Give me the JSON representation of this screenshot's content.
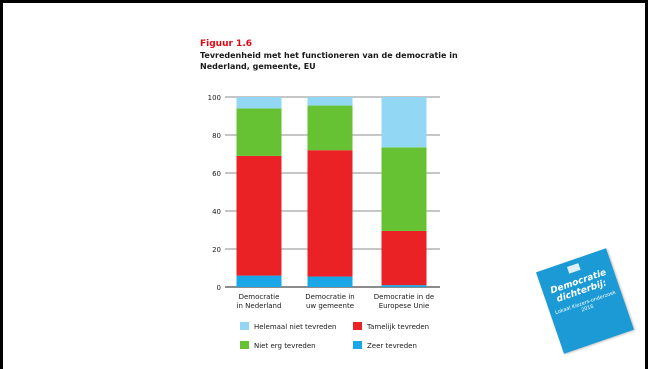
{
  "figure": {
    "label": "Figuur 1.6",
    "title": "Tevredenheid met het functioneren van de democratie in Nederland, gemeente, EU"
  },
  "booklet": {
    "title": "Democratie dichterbij:",
    "subtitle": "Lokaal Kiezers-onderzoek 2016"
  },
  "chart_data": {
    "type": "bar",
    "stacked": true,
    "categories": [
      [
        "Democratie",
        "in Nederland"
      ],
      [
        "Democratie in",
        "uw gemeente"
      ],
      [
        "Democratie in de",
        "Europese Unie"
      ]
    ],
    "series": [
      {
        "name": "Zeer tevreden",
        "color": "#1aa7e8",
        "values": [
          6,
          5.5,
          1
        ]
      },
      {
        "name": "Tamelijk tevreden",
        "color": "#ea2226",
        "values": [
          63,
          66.5,
          28.5
        ]
      },
      {
        "name": "Niet erg tevreden",
        "color": "#66c232",
        "values": [
          25,
          23.5,
          44
        ]
      },
      {
        "name": "Helemaal niet tevreden",
        "color": "#92d7f4",
        "values": [
          6,
          4.5,
          26.5
        ]
      }
    ],
    "legend_order": [
      "Helemaal niet tevreden",
      "Tamelijk tevreden",
      "Niet erg tevreden",
      "Zeer tevreden"
    ],
    "yticks": [
      0,
      20,
      40,
      60,
      80,
      100
    ],
    "ylim": [
      0,
      100
    ],
    "grid": true,
    "legend_position": "bottom"
  }
}
